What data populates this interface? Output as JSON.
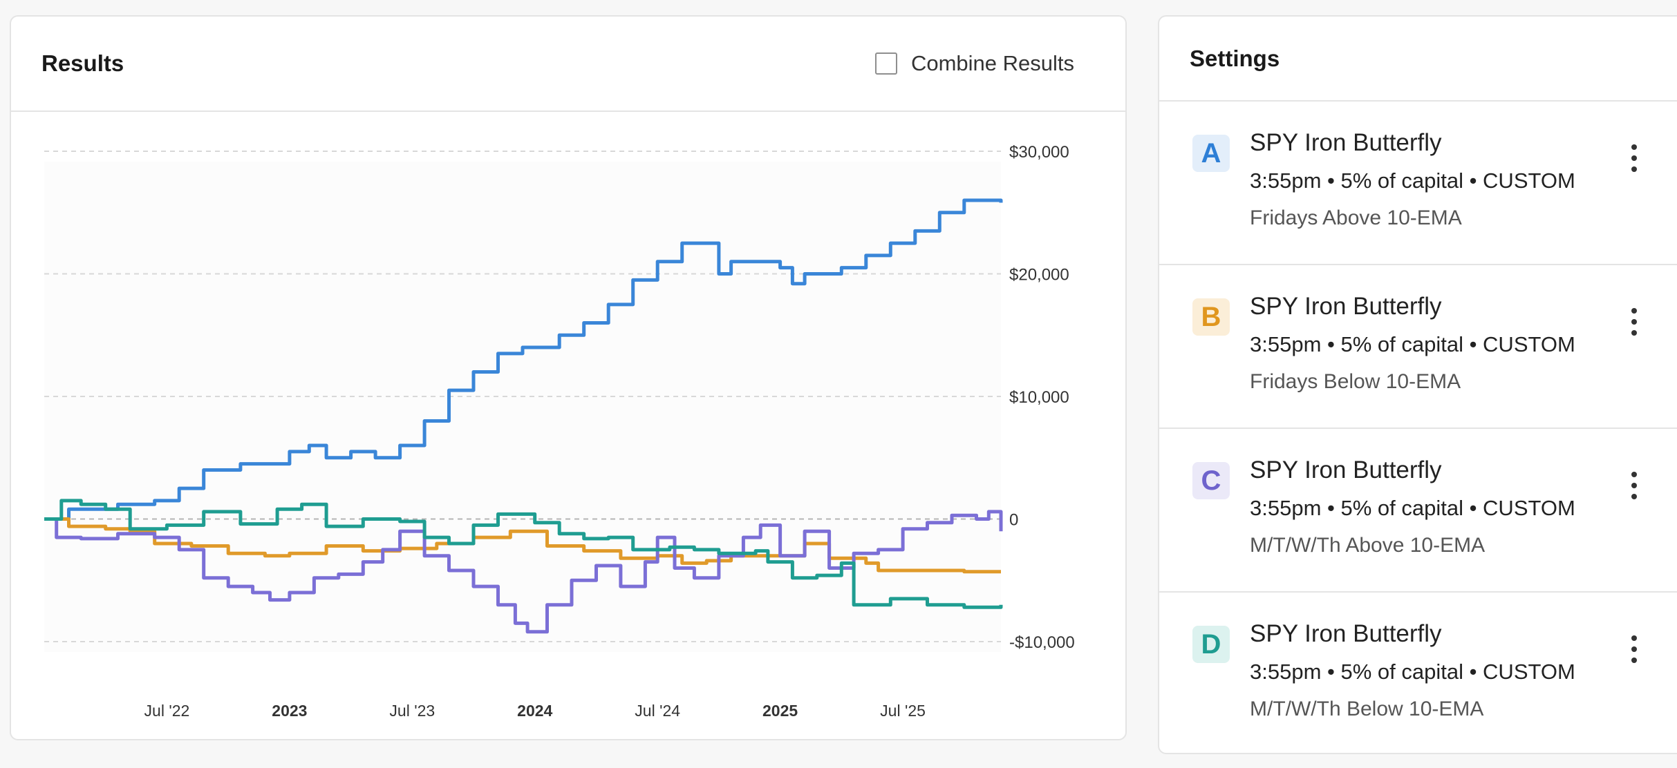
{
  "results": {
    "title": "Results",
    "combine_label": "Combine Results",
    "combine_checked": false
  },
  "settings": {
    "title": "Settings",
    "strategies": [
      {
        "letter": "A",
        "name": "SPY Iron Butterfly",
        "meta": "3:55pm • 5% of capital • CUSTOM",
        "note": "Fridays Above 10-EMA",
        "color": "#2e7fd6",
        "bg": "#e3eefa"
      },
      {
        "letter": "B",
        "name": "SPY Iron Butterfly",
        "meta": "3:55pm • 5% of capital • CUSTOM",
        "note": "Fridays Below 10-EMA",
        "color": "#e0961e",
        "bg": "#fbeed8"
      },
      {
        "letter": "C",
        "name": "SPY Iron Butterfly",
        "meta": "3:55pm • 5% of capital • CUSTOM",
        "note": "M/T/W/Th Above 10-EMA",
        "color": "#6e63cc",
        "bg": "#ebe9f8"
      },
      {
        "letter": "D",
        "name": "SPY Iron Butterfly",
        "meta": "3:55pm • 5% of capital • CUSTOM",
        "note": "M/T/W/Th Below 10-EMA",
        "color": "#1f9d91",
        "bg": "#dcf2ef"
      }
    ]
  },
  "chart_data": {
    "type": "line",
    "x_range": [
      2022.0,
      2025.9
    ],
    "ylim": [
      -10000,
      30000
    ],
    "y_ticks": [
      {
        "value": 30000,
        "label": "$30,000"
      },
      {
        "value": 20000,
        "label": "$20,000"
      },
      {
        "value": 10000,
        "label": "$10,000"
      },
      {
        "value": 0,
        "label": "0"
      },
      {
        "value": -10000,
        "label": "-$10,000"
      }
    ],
    "x_ticks": [
      {
        "value": 2022.5,
        "label": "Jul '22",
        "bold": false
      },
      {
        "value": 2023.0,
        "label": "2023",
        "bold": true
      },
      {
        "value": 2023.5,
        "label": "Jul '23",
        "bold": false
      },
      {
        "value": 2024.0,
        "label": "2024",
        "bold": true
      },
      {
        "value": 2024.5,
        "label": "Jul '24",
        "bold": false
      },
      {
        "value": 2025.0,
        "label": "2025",
        "bold": true
      },
      {
        "value": 2025.5,
        "label": "Jul '25",
        "bold": false
      }
    ],
    "series": [
      {
        "color": "#3a86d8",
        "points": [
          [
            2022.0,
            0
          ],
          [
            2022.1,
            800
          ],
          [
            2022.3,
            1200
          ],
          [
            2022.45,
            1500
          ],
          [
            2022.55,
            2500
          ],
          [
            2022.65,
            4000
          ],
          [
            2022.8,
            4500
          ],
          [
            2022.9,
            4500
          ],
          [
            2023.0,
            5500
          ],
          [
            2023.08,
            6000
          ],
          [
            2023.15,
            5000
          ],
          [
            2023.25,
            5500
          ],
          [
            2023.35,
            5000
          ],
          [
            2023.45,
            6000
          ],
          [
            2023.55,
            8000
          ],
          [
            2023.65,
            10500
          ],
          [
            2023.75,
            12000
          ],
          [
            2023.85,
            13500
          ],
          [
            2023.95,
            14000
          ],
          [
            2024.0,
            14000
          ],
          [
            2024.1,
            15000
          ],
          [
            2024.2,
            16000
          ],
          [
            2024.3,
            17500
          ],
          [
            2024.4,
            19500
          ],
          [
            2024.5,
            21000
          ],
          [
            2024.6,
            22500
          ],
          [
            2024.7,
            22500
          ],
          [
            2024.75,
            20000
          ],
          [
            2024.8,
            21000
          ],
          [
            2024.95,
            21000
          ],
          [
            2025.0,
            20500
          ],
          [
            2025.05,
            19200
          ],
          [
            2025.1,
            20000
          ],
          [
            2025.25,
            20500
          ],
          [
            2025.35,
            21500
          ],
          [
            2025.45,
            22500
          ],
          [
            2025.55,
            23500
          ],
          [
            2025.65,
            25000
          ],
          [
            2025.75,
            26000
          ],
          [
            2025.85,
            26000
          ],
          [
            2025.9,
            25800
          ]
        ]
      },
      {
        "color": "#e09a2a",
        "points": [
          [
            2022.0,
            0
          ],
          [
            2022.1,
            -600
          ],
          [
            2022.25,
            -800
          ],
          [
            2022.35,
            -1000
          ],
          [
            2022.45,
            -2000
          ],
          [
            2022.6,
            -2200
          ],
          [
            2022.75,
            -2800
          ],
          [
            2022.9,
            -3000
          ],
          [
            2023.0,
            -2800
          ],
          [
            2023.15,
            -2200
          ],
          [
            2023.3,
            -2600
          ],
          [
            2023.45,
            -2400
          ],
          [
            2023.6,
            -2000
          ],
          [
            2023.75,
            -1500
          ],
          [
            2023.9,
            -1000
          ],
          [
            2024.0,
            -1000
          ],
          [
            2024.05,
            -2200
          ],
          [
            2024.2,
            -2600
          ],
          [
            2024.35,
            -3200
          ],
          [
            2024.5,
            -3000
          ],
          [
            2024.6,
            -3600
          ],
          [
            2024.7,
            -3400
          ],
          [
            2024.8,
            -3000
          ],
          [
            2024.95,
            -3000
          ],
          [
            2025.1,
            -2000
          ],
          [
            2025.2,
            -3200
          ],
          [
            2025.35,
            -3600
          ],
          [
            2025.4,
            -4200
          ],
          [
            2025.6,
            -4200
          ],
          [
            2025.75,
            -4300
          ],
          [
            2025.9,
            -4300
          ]
        ]
      },
      {
        "color": "#7b6fd6",
        "points": [
          [
            2022.0,
            0
          ],
          [
            2022.05,
            -1500
          ],
          [
            2022.15,
            -1600
          ],
          [
            2022.3,
            -1200
          ],
          [
            2022.45,
            -1500
          ],
          [
            2022.55,
            -2500
          ],
          [
            2022.65,
            -4800
          ],
          [
            2022.75,
            -5500
          ],
          [
            2022.85,
            -6000
          ],
          [
            2022.92,
            -6600
          ],
          [
            2023.0,
            -6000
          ],
          [
            2023.1,
            -4800
          ],
          [
            2023.2,
            -4500
          ],
          [
            2023.3,
            -3500
          ],
          [
            2023.38,
            -2500
          ],
          [
            2023.45,
            -1000
          ],
          [
            2023.55,
            -3000
          ],
          [
            2023.65,
            -4200
          ],
          [
            2023.75,
            -5500
          ],
          [
            2023.85,
            -7000
          ],
          [
            2023.92,
            -8500
          ],
          [
            2023.97,
            -9200
          ],
          [
            2024.05,
            -7000
          ],
          [
            2024.15,
            -5000
          ],
          [
            2024.25,
            -3800
          ],
          [
            2024.35,
            -5500
          ],
          [
            2024.45,
            -3500
          ],
          [
            2024.5,
            -1500
          ],
          [
            2024.57,
            -4000
          ],
          [
            2024.65,
            -4800
          ],
          [
            2024.75,
            -3000
          ],
          [
            2024.85,
            -1500
          ],
          [
            2024.92,
            -500
          ],
          [
            2025.0,
            -3000
          ],
          [
            2025.1,
            -1000
          ],
          [
            2025.2,
            -4000
          ],
          [
            2025.3,
            -2800
          ],
          [
            2025.4,
            -2500
          ],
          [
            2025.5,
            -800
          ],
          [
            2025.6,
            -300
          ],
          [
            2025.7,
            300
          ],
          [
            2025.8,
            0
          ],
          [
            2025.85,
            600
          ],
          [
            2025.9,
            -1000
          ]
        ]
      },
      {
        "color": "#1f9d91",
        "points": [
          [
            2022.0,
            0
          ],
          [
            2022.07,
            1500
          ],
          [
            2022.15,
            1200
          ],
          [
            2022.25,
            800
          ],
          [
            2022.35,
            -800
          ],
          [
            2022.5,
            -500
          ],
          [
            2022.65,
            600
          ],
          [
            2022.8,
            -400
          ],
          [
            2022.95,
            800
          ],
          [
            2023.05,
            1200
          ],
          [
            2023.15,
            -600
          ],
          [
            2023.3,
            0
          ],
          [
            2023.45,
            -200
          ],
          [
            2023.55,
            -1500
          ],
          [
            2023.65,
            -2000
          ],
          [
            2023.75,
            -500
          ],
          [
            2023.85,
            400
          ],
          [
            2024.0,
            -300
          ],
          [
            2024.1,
            -1200
          ],
          [
            2024.2,
            -1600
          ],
          [
            2024.3,
            -1500
          ],
          [
            2024.4,
            -2500
          ],
          [
            2024.55,
            -2300
          ],
          [
            2024.65,
            -2500
          ],
          [
            2024.75,
            -2800
          ],
          [
            2024.9,
            -2600
          ],
          [
            2024.95,
            -3500
          ],
          [
            2025.05,
            -4800
          ],
          [
            2025.15,
            -4600
          ],
          [
            2025.25,
            -3600
          ],
          [
            2025.3,
            -7000
          ],
          [
            2025.45,
            -6500
          ],
          [
            2025.6,
            -7000
          ],
          [
            2025.75,
            -7200
          ],
          [
            2025.9,
            -7000
          ]
        ]
      }
    ]
  }
}
